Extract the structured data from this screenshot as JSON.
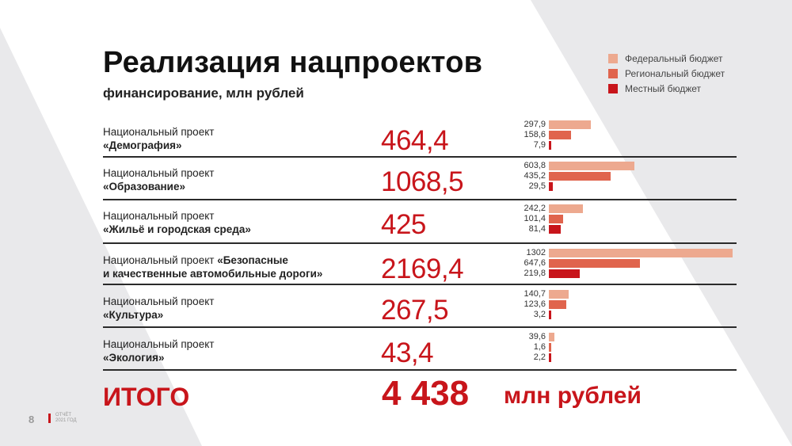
{
  "header": {
    "title": "Реализация нацпроектов",
    "subtitle": "финансирование, млн рублей"
  },
  "legend": [
    {
      "label": "Федеральный бюджет",
      "color": "#eda98f"
    },
    {
      "label": "Региональный бюджет",
      "color": "#e0644d"
    },
    {
      "label": "Местный бюджет",
      "color": "#c8151b"
    }
  ],
  "chart_data": {
    "type": "bar",
    "orientation": "horizontal",
    "categories": [
      "Национальный проект «Демография»",
      "Национальный проект «Образование»",
      "Национальный проект «Жильё и городская среда»",
      "Национальный проект «Безопасные и качественные автомобильные дороги»",
      "Национальный проект «Культура»",
      "Национальный проект «Экология»"
    ],
    "series": [
      {
        "name": "Федеральный бюджет",
        "values": [
          297.9,
          603.8,
          242.2,
          1302,
          140.7,
          39.6
        ],
        "labels": [
          "297,9",
          "603,8",
          "242,2",
          "1302",
          "140,7",
          "39,6"
        ]
      },
      {
        "name": "Региональный бюджет",
        "values": [
          158.6,
          435.2,
          101.4,
          647.6,
          123.6,
          1.6
        ],
        "labels": [
          "158,6",
          "435,2",
          "101,4",
          "647,6",
          "123,6",
          "1,6"
        ]
      },
      {
        "name": "Местный бюджет",
        "values": [
          7.9,
          29.5,
          81.4,
          219.8,
          3.2,
          2.2
        ],
        "labels": [
          "7,9",
          "29,5",
          "81,4",
          "219,8",
          "3,2",
          "2,2"
        ]
      }
    ],
    "totals": [
      "464,4",
      "1068,5",
      "425",
      "2169,4",
      "267,5",
      "43,4"
    ],
    "xlim": [
      0,
      1302
    ],
    "grid": false,
    "legend_position": "top-right"
  },
  "projects": [
    {
      "prefix": "Национальный проект",
      "name": "«Демография»"
    },
    {
      "prefix": "Национальный проект",
      "name": "«Образование»"
    },
    {
      "prefix": "Национальный проект",
      "name": "«Жильё и городская среда»"
    },
    {
      "prefix": "Национальный проект",
      "name_inline": "«Безопасные",
      "name": "и качественные автомобильные дороги»"
    },
    {
      "prefix": "Национальный проект",
      "name": "«Культура»"
    },
    {
      "prefix": "Национальный проект",
      "name": "«Экология»"
    }
  ],
  "summary": {
    "label": "ИТОГО",
    "value": "4 438",
    "unit": "млн рублей"
  },
  "footer": {
    "page_number": "8",
    "report_line1": "ОТЧЁТ",
    "report_line2": "2021 ГОД"
  },
  "colors": {
    "accent": "#c8151b",
    "background": "#e9e9eb"
  }
}
